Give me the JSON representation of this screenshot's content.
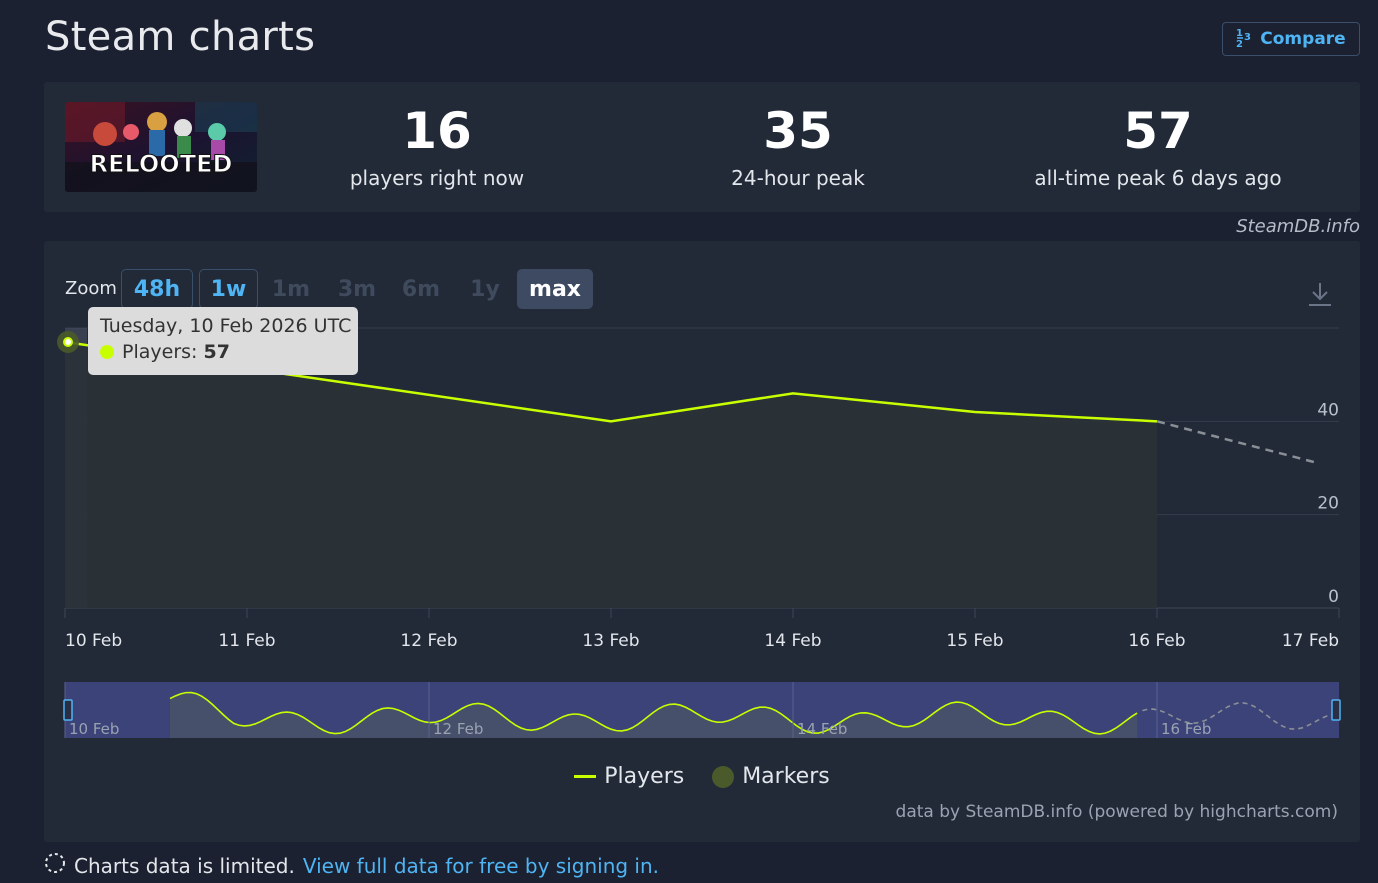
{
  "page": {
    "title": "Steam charts"
  },
  "compare": {
    "icon": "1 2 3",
    "label": "Compare"
  },
  "game": {
    "name": "RELOOTED"
  },
  "stats": [
    {
      "value": "16",
      "label": "players right now"
    },
    {
      "value": "35",
      "label": "24-hour peak"
    },
    {
      "value": "57",
      "label": "all-time peak 6 days ago"
    }
  ],
  "attribution": "SteamDB.info",
  "zoom": {
    "label": "Zoom",
    "options": [
      "48h",
      "1w",
      "1m",
      "3m",
      "6m",
      "1y",
      "max"
    ],
    "selected": "max"
  },
  "tooltip": {
    "date": "Tuesday, 10 Feb 2026 UTC",
    "series": "Players",
    "value": "57"
  },
  "legend": {
    "players": "Players",
    "markers": "Markers"
  },
  "credits": "data by SteamDB.info (powered by highcharts.com)",
  "footer": {
    "notice": "Charts data is limited.",
    "link": "View full data for free by signing in."
  },
  "colors": {
    "background": "#1b2130",
    "panel": "#222a38",
    "accent": "#4fb4f3",
    "series": "#c8ff00"
  },
  "chart_data": {
    "type": "line",
    "series": [
      {
        "name": "Players",
        "x": [
          "10 Feb",
          "13 Feb",
          "14 Feb",
          "15 Feb",
          "16 Feb"
        ],
        "values": [
          57,
          40,
          46,
          42,
          40
        ]
      },
      {
        "name": "Players (projected)",
        "x": [
          "16 Feb",
          "17 Feb"
        ],
        "values": [
          40,
          31
        ]
      }
    ],
    "x_ticks": [
      "10 Feb",
      "11 Feb",
      "12 Feb",
      "13 Feb",
      "14 Feb",
      "15 Feb",
      "16 Feb",
      "17 Feb"
    ],
    "y_ticks": [
      "0",
      "20",
      "40"
    ],
    "ylim": [
      0,
      60
    ],
    "grid": true,
    "navigator_labels": [
      "10 Feb",
      "12 Feb",
      "14 Feb",
      "16 Feb"
    ],
    "legend_position": "bottom-center"
  }
}
